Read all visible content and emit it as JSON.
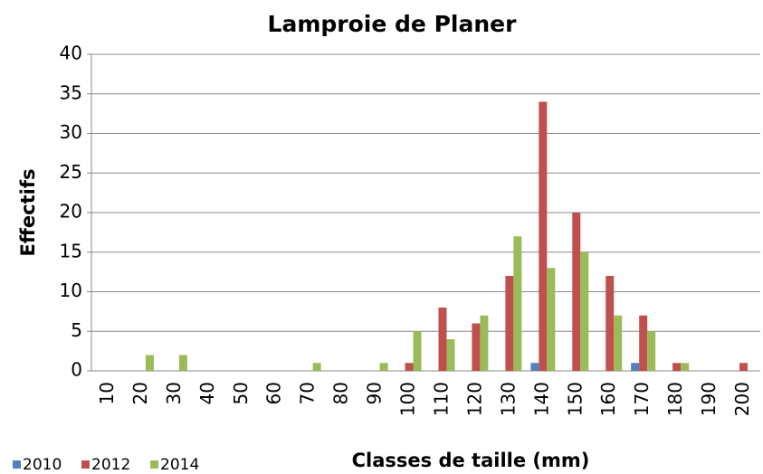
{
  "chart_data": {
    "type": "bar",
    "title": "Lamproie de Planer",
    "x_label": "Classes de taille (mm)",
    "y_label": "Effectifs",
    "categories": [
      "10",
      "20",
      "30",
      "40",
      "50",
      "60",
      "70",
      "80",
      "90",
      "100",
      "110",
      "120",
      "130",
      "140",
      "150",
      "160",
      "170",
      "180",
      "190",
      "200"
    ],
    "series": [
      {
        "name": "2010",
        "color": "#4f81bd",
        "values": [
          0,
          0,
          0,
          0,
          0,
          0,
          0,
          0,
          0,
          0,
          0,
          0,
          0,
          1,
          0,
          0,
          1,
          0,
          0,
          0
        ]
      },
      {
        "name": "2012",
        "color": "#c0504d",
        "values": [
          0,
          0,
          0,
          0,
          0,
          0,
          0,
          0,
          0,
          1,
          8,
          6,
          12,
          34,
          20,
          12,
          7,
          1,
          0,
          1
        ]
      },
      {
        "name": "2014",
        "color": "#9bbb59",
        "values": [
          0,
          2,
          2,
          0,
          0,
          0,
          1,
          0,
          1,
          5,
          4,
          7,
          17,
          13,
          15,
          7,
          5,
          1,
          0,
          0
        ]
      }
    ],
    "ylim": [
      0,
      40
    ],
    "yticks": [
      0,
      5,
      10,
      15,
      20,
      25,
      30,
      35,
      40
    ],
    "grid": true,
    "legend": "bottom-left"
  }
}
